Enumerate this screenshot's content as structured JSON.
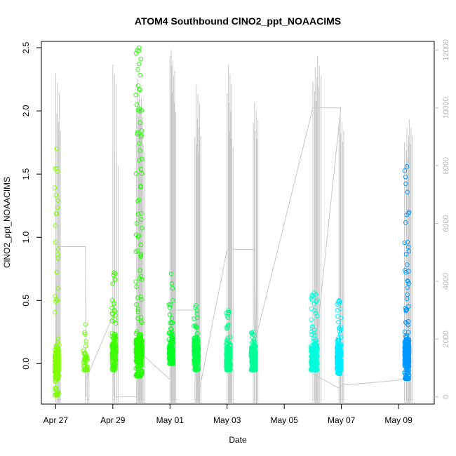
{
  "chart_data": {
    "type": "scatter",
    "title": "ATOM4 Southbound ClNO2_ppt_NOAACIMS",
    "xlabel": "Date",
    "ylabel": "ClNO2_ppt_NOAACIMS",
    "xlim": [
      "2018-04-26T12:00",
      "2018-05-10T06:00"
    ],
    "ylim": [
      -0.32,
      2.55
    ],
    "y2lim": [
      -250,
      12300
    ],
    "xticks": [
      {
        "label": "Apr 27",
        "date": "2018-04-27"
      },
      {
        "label": "Apr 29",
        "date": "2018-04-29"
      },
      {
        "label": "May 01",
        "date": "2018-05-01"
      },
      {
        "label": "May 03",
        "date": "2018-05-03"
      },
      {
        "label": "May 05",
        "date": "2018-05-05"
      },
      {
        "label": "May 07",
        "date": "2018-05-07"
      },
      {
        "label": "May 09",
        "date": "2018-05-09"
      }
    ],
    "yticks": [
      "0.0",
      "0.5",
      "1.0",
      "1.5",
      "2.0",
      "2.5"
    ],
    "y2ticks": [
      "0",
      "2000",
      "4000",
      "6000",
      "8000",
      "10000",
      "12000"
    ],
    "grid": false,
    "marker": "open-circle",
    "altitude_series_color": "#c8c8c8",
    "clusters": [
      {
        "date": "2018-04-27T01:00",
        "width_days": 0.09,
        "min": -0.25,
        "max": 1.7,
        "median": 0.0,
        "n": 220,
        "color": "#80ff00"
      },
      {
        "date": "2018-04-28T01:00",
        "width_days": 0.06,
        "min": -0.05,
        "max": 0.31,
        "median": 0.0,
        "n": 40,
        "color": "#66ff00"
      },
      {
        "date": "2018-04-29T01:00",
        "width_days": 0.1,
        "min": -0.05,
        "max": 0.72,
        "median": 0.12,
        "n": 160,
        "color": "#3cff00"
      },
      {
        "date": "2018-04-29T22:00",
        "width_days": 0.22,
        "min": -0.1,
        "max": 2.5,
        "median": 0.1,
        "n": 360,
        "color": "#22ff00"
      },
      {
        "date": "2018-05-01T01:00",
        "width_days": 0.1,
        "min": 0.0,
        "max": 0.71,
        "median": 0.1,
        "n": 140,
        "color": "#00ff22"
      },
      {
        "date": "2018-05-01T22:00",
        "width_days": 0.16,
        "min": -0.05,
        "max": 0.46,
        "median": 0.08,
        "n": 200,
        "color": "#00ff44"
      },
      {
        "date": "2018-05-03T01:00",
        "width_days": 0.14,
        "min": -0.05,
        "max": 0.42,
        "median": 0.05,
        "n": 180,
        "color": "#00ff88"
      },
      {
        "date": "2018-05-03T22:00",
        "width_days": 0.16,
        "min": -0.05,
        "max": 0.25,
        "median": 0.05,
        "n": 160,
        "color": "#00ff99"
      },
      {
        "date": "2018-05-06T01:00",
        "width_days": 0.22,
        "min": -0.05,
        "max": 0.56,
        "median": 0.05,
        "n": 240,
        "color": "#00ffdd"
      },
      {
        "date": "2018-05-06T22:00",
        "width_days": 0.14,
        "min": -0.08,
        "max": 0.5,
        "median": 0.05,
        "n": 200,
        "color": "#00eeff"
      },
      {
        "date": "2018-05-09T07:00",
        "width_days": 0.16,
        "min": -0.12,
        "max": 1.56,
        "median": 0.08,
        "n": 300,
        "color": "#0099ff"
      }
    ],
    "altitude_spikes": [
      {
        "date": "2018-04-27T00:00",
        "max": 11200
      },
      {
        "date": "2018-04-27T01:00",
        "max": 9800
      },
      {
        "date": "2018-04-28T01:00",
        "max": 1200
      },
      {
        "date": "2018-04-29T00:00",
        "max": 11500
      },
      {
        "date": "2018-04-29T01:30",
        "max": 8500
      },
      {
        "date": "2018-04-29T20:00",
        "max": 10000
      },
      {
        "date": "2018-04-29T21:00",
        "max": 11000
      },
      {
        "date": "2018-04-29T22:00",
        "max": 10300
      },
      {
        "date": "2018-04-30T00:00",
        "max": 9000
      },
      {
        "date": "2018-05-01T00:00",
        "max": 11800
      },
      {
        "date": "2018-05-01T01:00",
        "max": 12000
      },
      {
        "date": "2018-05-01T02:00",
        "max": 10500
      },
      {
        "date": "2018-05-01T21:00",
        "max": 9000
      },
      {
        "date": "2018-05-01T22:00",
        "max": 10800
      },
      {
        "date": "2018-05-01T23:00",
        "max": 9600
      },
      {
        "date": "2018-05-03T00:00",
        "max": 10500
      },
      {
        "date": "2018-05-03T01:00",
        "max": 11500
      },
      {
        "date": "2018-05-03T02:00",
        "max": 9200
      },
      {
        "date": "2018-05-03T22:00",
        "max": 9500
      },
      {
        "date": "2018-05-03T23:00",
        "max": 10200
      },
      {
        "date": "2018-05-06T00:00",
        "max": 10900
      },
      {
        "date": "2018-05-06T02:00",
        "max": 11400
      },
      {
        "date": "2018-05-06T04:00",
        "max": 11800
      },
      {
        "date": "2018-05-06T22:00",
        "max": 9400
      },
      {
        "date": "2018-05-06T23:00",
        "max": 9800
      },
      {
        "date": "2018-05-09T05:00",
        "max": 8800
      },
      {
        "date": "2018-05-09T07:00",
        "max": 9300
      },
      {
        "date": "2018-05-09T09:00",
        "max": 9600
      }
    ],
    "altitude_path": [
      [
        "2018-04-27T00:00",
        0
      ],
      [
        "2018-04-27T01:00",
        5200
      ],
      [
        "2018-04-28T01:00",
        5200
      ],
      [
        "2018-04-28T01:30",
        0
      ],
      [
        "2018-04-28T01:30",
        600
      ],
      [
        "2018-04-29T00:00",
        2800
      ],
      [
        "2018-04-29T01:00",
        0
      ],
      [
        "2018-04-29T02:00",
        0
      ],
      [
        "2018-04-29T20:00",
        0
      ],
      [
        "2018-04-29T21:00",
        3300
      ],
      [
        "2018-04-30T00:00",
        1500
      ],
      [
        "2018-05-01T00:00",
        600
      ],
      [
        "2018-05-01T00:30",
        3000
      ],
      [
        "2018-05-01T23:00",
        3000
      ],
      [
        "2018-05-01T23:30",
        0
      ],
      [
        "2018-05-03T00:00",
        5100
      ],
      [
        "2018-05-03T23:00",
        5100
      ],
      [
        "2018-05-04T00:00",
        2000
      ],
      [
        "2018-05-06T00:00",
        10000
      ],
      [
        "2018-05-06T23:30",
        10000
      ],
      [
        "2018-05-06T00:00",
        800
      ],
      [
        "2018-05-06T22:00",
        300
      ],
      [
        "2018-05-07T00:00",
        400
      ],
      [
        "2018-05-09T06:00",
        600
      ]
    ]
  }
}
